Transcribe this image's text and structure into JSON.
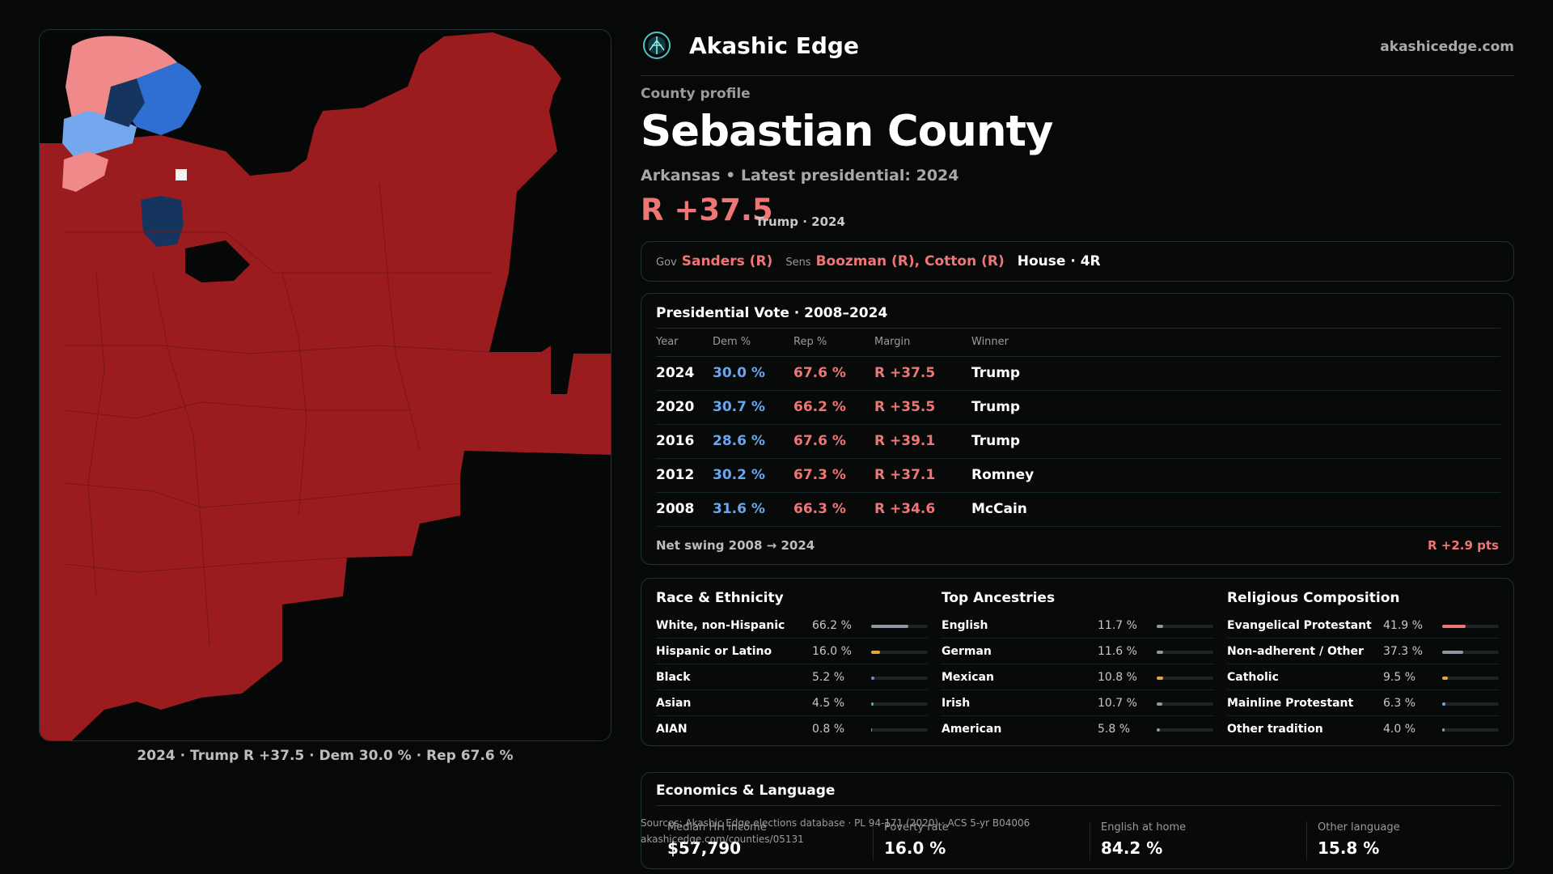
{
  "brand": {
    "name": "Akashic Edge",
    "url": "akashicedge.com"
  },
  "county": {
    "kicker": "County profile",
    "name": "Sebastian County",
    "subtitle": "Arkansas • Latest presidential: 2024",
    "margin": "R +37.5",
    "margin_note": "Trump · 2024"
  },
  "officials": {
    "gov_label": "Gov",
    "gov": "Sanders (R)",
    "sens_label": "Sens",
    "sens": "Boozman (R), Cotton (R)",
    "house": "House · 4R"
  },
  "presidential": {
    "title": "Presidential Vote · 2008–2024",
    "headers": [
      "Year",
      "Dem %",
      "Rep %",
      "Margin",
      "Winner"
    ],
    "rows": [
      {
        "year": "2024",
        "dem": "30.0 %",
        "rep": "67.6 %",
        "margin": "R +37.5",
        "winner": "Trump"
      },
      {
        "year": "2020",
        "dem": "30.7 %",
        "rep": "66.2 %",
        "margin": "R +35.5",
        "winner": "Trump"
      },
      {
        "year": "2016",
        "dem": "28.6 %",
        "rep": "67.6 %",
        "margin": "R +39.1",
        "winner": "Trump"
      },
      {
        "year": "2012",
        "dem": "30.2 %",
        "rep": "67.3 %",
        "margin": "R +37.1",
        "winner": "Romney"
      },
      {
        "year": "2008",
        "dem": "31.6 %",
        "rep": "66.3 %",
        "margin": "R +34.6",
        "winner": "McCain"
      }
    ],
    "swing_label": "Net swing 2008 → 2024",
    "swing_value": "R +2.9 pts"
  },
  "demographics": [
    {
      "title": "Race & Ethnicity",
      "rows": [
        {
          "name": "White, non-Hispanic",
          "value": "66.2 %",
          "pct": 66.2,
          "color": "#8f98a2"
        },
        {
          "name": "Hispanic or Latino",
          "value": "16.0 %",
          "pct": 16.0,
          "color": "#e7a43a"
        },
        {
          "name": "Black",
          "value": "5.2 %",
          "pct": 5.2,
          "color": "#8a7fd6"
        },
        {
          "name": "Asian",
          "value": "4.5 %",
          "pct": 4.5,
          "color": "#3fbf8a"
        },
        {
          "name": "AIAN",
          "value": "0.8 %",
          "pct": 0.8,
          "color": "#8f98a2"
        }
      ]
    },
    {
      "title": "Top Ancestries",
      "rows": [
        {
          "name": "English",
          "value": "11.7 %",
          "pct": 11.7,
          "color": "#8f98a2"
        },
        {
          "name": "German",
          "value": "11.6 %",
          "pct": 11.6,
          "color": "#8f98a2"
        },
        {
          "name": "Mexican",
          "value": "10.8 %",
          "pct": 10.8,
          "color": "#e7a43a"
        },
        {
          "name": "Irish",
          "value": "10.7 %",
          "pct": 10.7,
          "color": "#8f98a2"
        },
        {
          "name": "American",
          "value": "5.8 %",
          "pct": 5.8,
          "color": "#8f98a2"
        }
      ]
    },
    {
      "title": "Religious Composition",
      "rows": [
        {
          "name": "Evangelical Protestant",
          "value": "41.9 %",
          "pct": 41.9,
          "color": "#f07575"
        },
        {
          "name": "Non-adherent / Other",
          "value": "37.3 %",
          "pct": 37.3,
          "color": "#8f98a2"
        },
        {
          "name": "Catholic",
          "value": "9.5 %",
          "pct": 9.5,
          "color": "#e7a43a"
        },
        {
          "name": "Mainline Protestant",
          "value": "6.3 %",
          "pct": 6.3,
          "color": "#6aa6ee"
        },
        {
          "name": "Other tradition",
          "value": "4.0 %",
          "pct": 4.0,
          "color": "#8f98a2"
        }
      ]
    }
  ],
  "economics": {
    "title": "Economics & Language",
    "items": [
      {
        "label": "Median HH income",
        "value": "$57,790"
      },
      {
        "label": "Poverty rate",
        "value": "16.0 %"
      },
      {
        "label": "English at home",
        "value": "84.2 %"
      },
      {
        "label": "Other language",
        "value": "15.8 %"
      }
    ]
  },
  "sources": {
    "line1": "Sources: Akashic Edge elections database · PL 94-171 (2020) · ACS 5-yr B04006",
    "line2": "akashicedge.com/counties/05131"
  },
  "map": {
    "caption": "2024 · Trump R +37.5 · Dem 30.0 % · Rep 67.6 %",
    "colors": {
      "rep_strong": "#9b1c1f",
      "rep_lean": "#f08a8a",
      "dem_strong": "#16355e",
      "dem_mid": "#2f6fd2",
      "dem_lean": "#74a8ee",
      "tie": "#f2f2f2"
    }
  }
}
